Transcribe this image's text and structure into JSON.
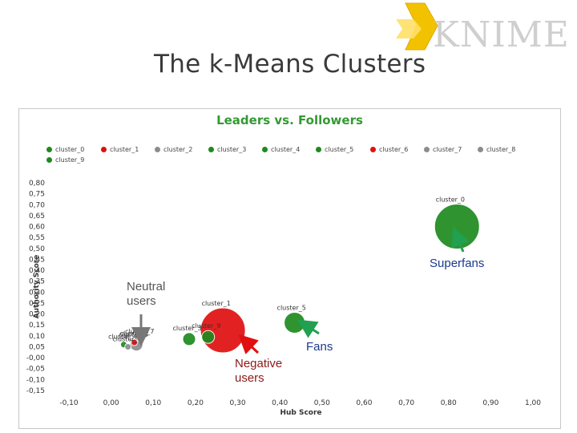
{
  "slide": {
    "title": "The k-Means Clusters",
    "logo_text": "KNIME"
  },
  "chart_data": {
    "type": "scatter",
    "title": "Leaders vs. Followers",
    "xlabel": "Hub Score",
    "ylabel": "Authority Score",
    "xlim": [
      -0.1,
      1.0
    ],
    "ylim": [
      -0.15,
      0.8
    ],
    "x_ticks": [
      "-0,10",
      "0,00",
      "0,10",
      "0,20",
      "0,30",
      "0,40",
      "0,50",
      "0,60",
      "0,70",
      "0,80",
      "0,90",
      "1,00"
    ],
    "y_ticks": [
      "0,80",
      "0,75",
      "0,70",
      "0,65",
      "0,60",
      "0,55",
      "0,50",
      "0,45",
      "0,40",
      "0,35",
      "0,30",
      "0,25",
      "0,20",
      "0,15",
      "0,10",
      "0,05",
      "-0,00",
      "-0,05",
      "-0,10",
      "-0,15"
    ],
    "legend": [
      {
        "name": "cluster_0",
        "color": "#1e8a1e"
      },
      {
        "name": "cluster_1",
        "color": "#e01010"
      },
      {
        "name": "cluster_2",
        "color": "#8c8c8c"
      },
      {
        "name": "cluster_3",
        "color": "#1e8a1e"
      },
      {
        "name": "cluster_4",
        "color": "#1e8a1e"
      },
      {
        "name": "cluster_5",
        "color": "#1e8a1e"
      },
      {
        "name": "cluster_6",
        "color": "#e01010"
      },
      {
        "name": "cluster_7",
        "color": "#8c8c8c"
      },
      {
        "name": "cluster_8",
        "color": "#8c8c8c"
      },
      {
        "name": "cluster_9",
        "color": "#1e8a1e"
      }
    ],
    "points": [
      {
        "label": "cluster_0",
        "x": 0.82,
        "y": 0.6,
        "size": "large",
        "color": "#1e8a1e"
      },
      {
        "label": "cluster_5",
        "x": 0.435,
        "y": 0.16,
        "size": "medium",
        "color": "#1e8a1e"
      },
      {
        "label": "cluster_1",
        "x": 0.265,
        "y": 0.125,
        "size": "large",
        "color": "#e01010"
      },
      {
        "label": "cluster_9",
        "x": 0.23,
        "y": 0.095,
        "size": "small",
        "color": "#1e8a1e"
      },
      {
        "label": "cluster_3",
        "x": 0.185,
        "y": 0.085,
        "size": "small",
        "color": "#1e8a1e"
      },
      {
        "label": "cluster_7",
        "x": 0.07,
        "y": 0.085,
        "size": "tiny",
        "color": "#8c8c8c"
      },
      {
        "label": "cluster_2",
        "x": 0.06,
        "y": 0.06,
        "size": "small",
        "color": "#8c8c8c"
      },
      {
        "label": "cluster_6",
        "x": 0.055,
        "y": 0.07,
        "size": "tiny",
        "color": "#e01010"
      },
      {
        "label": "cluster_4",
        "x": 0.03,
        "y": 0.06,
        "size": "tiny",
        "color": "#1e8a1e"
      },
      {
        "label": "cluster_8",
        "x": 0.04,
        "y": 0.05,
        "size": "tiny",
        "color": "#8c8c8c"
      }
    ]
  },
  "annotations": [
    {
      "text": "Superfans",
      "color": "#1a3a8a"
    },
    {
      "text": "Neutral\nusers",
      "color": "#555555"
    },
    {
      "text": "Fans",
      "color": "#1a3a8a"
    },
    {
      "text": "Negative\nusers",
      "color": "#8a1a1a"
    }
  ]
}
